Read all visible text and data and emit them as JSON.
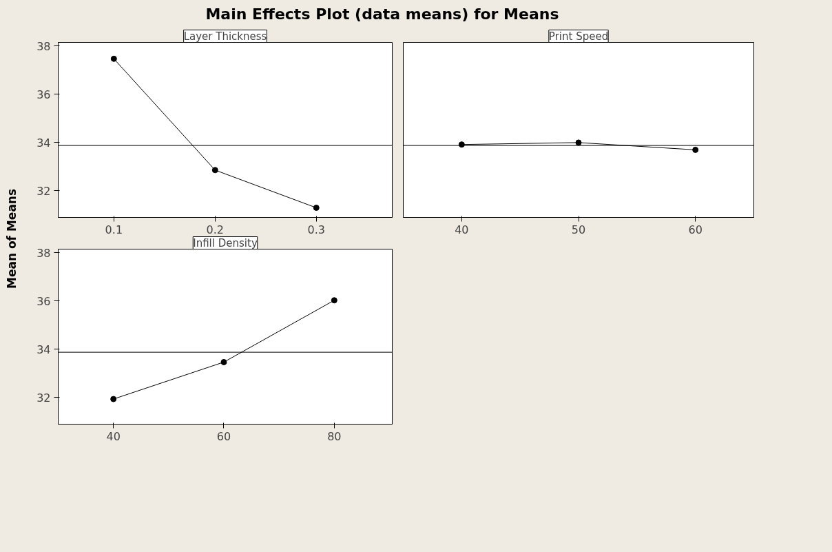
{
  "chart_data": [
    {
      "type": "line",
      "title": "Layer Thickness",
      "annotations": [
        "Main Effects Plot (data means) for Means"
      ],
      "ylabel": "Mean of Means",
      "x": [
        0.1,
        0.2,
        0.3
      ],
      "values": [
        37.47,
        32.86,
        31.3
      ],
      "color": "#000000",
      "marker": "circle",
      "xlim": [
        0.045,
        0.375
      ],
      "xticks": [
        0.1,
        0.2,
        0.3
      ],
      "ylim": [
        30.9,
        38.15
      ],
      "yticks": [
        32,
        34,
        36,
        38
      ],
      "ref_lines": [
        {
          "axis": "y",
          "value": 33.88,
          "label": null
        }
      ],
      "grid": false
    },
    {
      "type": "line",
      "title": "Print Speed",
      "x": [
        40,
        50,
        60
      ],
      "values": [
        33.92,
        34.0,
        33.7
      ],
      "color": "#000000",
      "marker": "circle",
      "xlim": [
        35,
        65
      ],
      "xticks": [
        40,
        50,
        60
      ],
      "ylim": [
        30.9,
        38.15
      ],
      "yticks": [
        32,
        34,
        36,
        38
      ],
      "tick_labels": "x",
      "ref_lines": [
        {
          "axis": "y",
          "value": 33.88,
          "label": null
        }
      ],
      "grid": false
    },
    {
      "type": "line",
      "title": "Infill Density",
      "x": [
        40,
        60,
        80
      ],
      "values": [
        31.94,
        33.47,
        36.03
      ],
      "color": "#000000",
      "marker": "circle",
      "xlim": [
        30,
        90.5
      ],
      "xticks": [
        40,
        60,
        80
      ],
      "ylim": [
        30.9,
        38.15
      ],
      "yticks": [
        32,
        34,
        36,
        38
      ],
      "ref_lines": [
        {
          "axis": "y",
          "value": 33.88,
          "label": null
        }
      ],
      "grid": false
    }
  ]
}
